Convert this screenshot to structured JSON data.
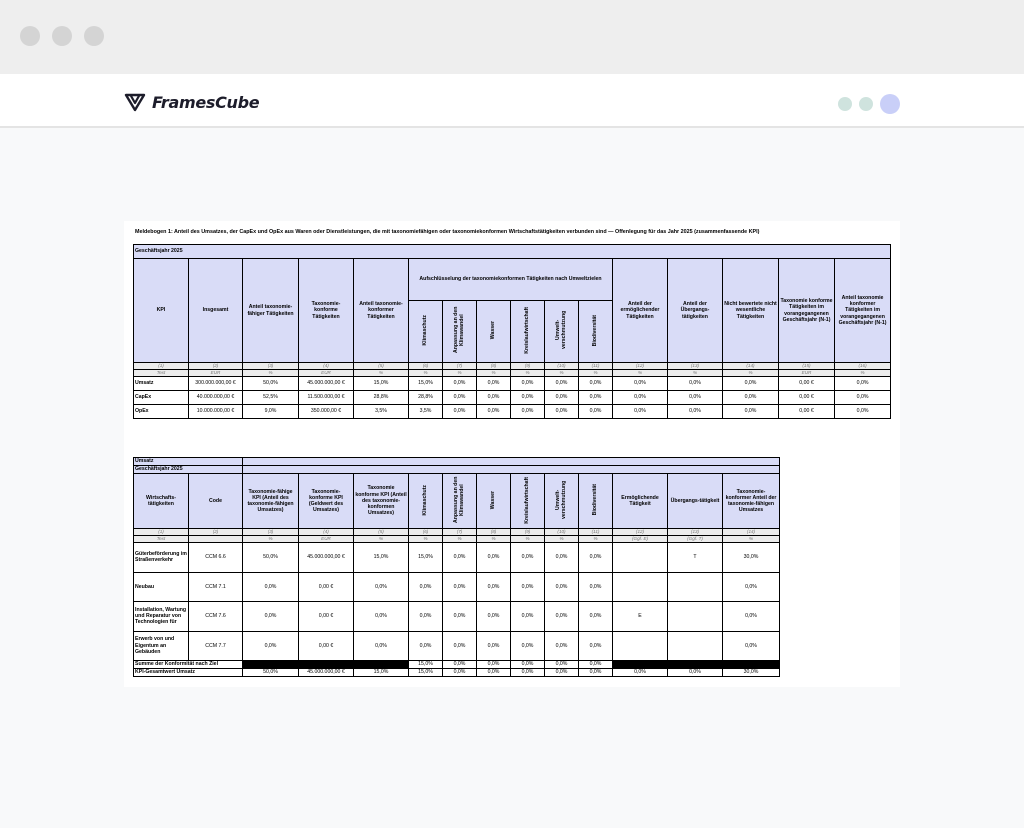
{
  "app": {
    "name": "FramesCube"
  },
  "document": {
    "title": "Meldebogen 1: Anteil des Umsatzes, der CapEx und OpEx aus Waren oder Dienstleistungen, die mit taxonomiefähigen oder taxonomiekonformen Wirtschaftstätigkeiten verbunden sind — Offenlegung für das Jahr 2025 (zusammenfassende KPI)"
  },
  "table1": {
    "fiscal_year": "Geschäftsjahr 2025",
    "headers": {
      "kpi": "KPI",
      "total": "Insgesamt",
      "eligible_share": "Anteil taxonomie-fähiger Tätigkeiten",
      "aligned": "Taxonomie-konforme Tätigkeiten",
      "aligned_share": "Anteil taxonomie-konformer Tätigkeiten",
      "breakdown": "Aufschlüsselung der taxonomiekonformen Tätigkeiten nach Umweltzielen",
      "enabling": "Anteil der ermöglichender Tätigkeiten",
      "transitional": "Anteil der Übergangs-tätigkeiten",
      "not_assessed": "Nicht bewertete nicht wesentliche Tätigkeiten",
      "prev_aligned": "Taxonomie konforme Tätigkeiten im vorangegangenen Geschäftsjahr (N-1)",
      "prev_share": "Anteil taxonomie konformer Tätigkeiten im vorangegangenen Geschäftsjahr (N-1)"
    },
    "objectives": [
      "Klimaschutz",
      "Anpassung an den Klimawandel",
      "Wasser",
      "Kreislaufwirtschaft",
      "Umwelt-verschmutzung",
      "Biodiversität"
    ],
    "col_numbers": [
      "(1)",
      "(2)",
      "(3)",
      "(4)",
      "(5)",
      "(6)",
      "(7)",
      "(8)",
      "(9)",
      "(10)",
      "(11)",
      "(12)",
      "(13)",
      "(14)",
      "(15)",
      "(16)"
    ],
    "col_units": [
      "Text",
      "EUR",
      "%",
      "EUR",
      "%",
      "%",
      "%",
      "%",
      "%",
      "%",
      "%",
      "%",
      "%",
      "%",
      "EUR",
      "%"
    ],
    "rows": [
      [
        "Umsatz",
        "300.000.000,00 €",
        "50,0%",
        "45.000.000,00 €",
        "15,0%",
        "15,0%",
        "0,0%",
        "0,0%",
        "0,0%",
        "0,0%",
        "0,0%",
        "0,0%",
        "0,0%",
        "0,0%",
        "0,00 €",
        "0,0%"
      ],
      [
        "CapEx",
        "40.000.000,00 €",
        "52,5%",
        "11.500.000,00 €",
        "28,8%",
        "28,8%",
        "0,0%",
        "0,0%",
        "0,0%",
        "0,0%",
        "0,0%",
        "0,0%",
        "0,0%",
        "0,0%",
        "0,00 €",
        "0,0%"
      ],
      [
        "OpEx",
        "10.000.000,00 €",
        "9,0%",
        "350.000,00 €",
        "3,5%",
        "3,5%",
        "0,0%",
        "0,0%",
        "0,0%",
        "0,0%",
        "0,0%",
        "0,0%",
        "0,0%",
        "0,0%",
        "0,00 €",
        "0,0%"
      ]
    ]
  },
  "table2": {
    "section": "Umsatz",
    "fiscal_year": "Geschäftsjahr 2025",
    "headers": {
      "activities": "Wirtschafts-tätigkeiten",
      "code": "Code",
      "eligible_kpi": "Taxonomie-fähige KPI (Anteil des taxonomie-fähigen Umsatzes)",
      "aligned_kpi_money": "Taxonomie-konforme KPI (Geldwert des Umsatzes)",
      "aligned_kpi_share": "Taxonomie konforme KPI (Anteil des taxonomie-konformen Umsatzes)",
      "enabling": "Ermöglichende Tätigkeit",
      "transitional": "Übergangs-tätigkeit",
      "aligned_share_eligible": "Taxonomie-konformer Anteil der taxonomie-fähigen Umsatzes"
    },
    "objectives": [
      "Klimaschutz",
      "Anpassung an den Klimawandel",
      "Wasser",
      "Kreislaufwirtschaft",
      "Umwelt-verschmutzung",
      "Biodiversität"
    ],
    "col_numbers": [
      "(1)",
      "(2)",
      "(3)",
      "(4)",
      "(5)",
      "(6)",
      "(7)",
      "(8)",
      "(9)",
      "(10)",
      "(11)",
      "(12)",
      "(13)",
      "(14)"
    ],
    "col_units": [
      "Text",
      "",
      "%",
      "EUR",
      "%",
      "%",
      "%",
      "%",
      "%",
      "%",
      "%",
      "(Ggf. E)",
      "(Ggf. T)",
      "%"
    ],
    "rows": [
      [
        "Güterbeförderung im Straßenverkehr",
        "CCM 6.6",
        "50,0%",
        "45.000.000,00 €",
        "15,0%",
        "15,0%",
        "0,0%",
        "0,0%",
        "0,0%",
        "0,0%",
        "0,0%",
        "",
        "T",
        "30,0%"
      ],
      [
        "Neubau",
        "CCM 7.1",
        "0,0%",
        "0,00 €",
        "0,0%",
        "0,0%",
        "0,0%",
        "0,0%",
        "0,0%",
        "0,0%",
        "0,0%",
        "",
        "",
        "0,0%"
      ],
      [
        "Installation, Wartung und Reparatur von Technologien für",
        "CCM 7.6",
        "0,0%",
        "0,00 €",
        "0,0%",
        "0,0%",
        "0,0%",
        "0,0%",
        "0,0%",
        "0,0%",
        "0,0%",
        "E",
        "",
        "0,0%"
      ],
      [
        "Erwerb von und Eigentum an Gebäuden",
        "CCM 7.7",
        "0,0%",
        "0,00 €",
        "0,0%",
        "0,0%",
        "0,0%",
        "0,0%",
        "0,0%",
        "0,0%",
        "0,0%",
        "",
        "",
        "0,0%"
      ]
    ],
    "sum_row": {
      "label": "Summe der Konformität nach Ziel",
      "values": [
        "15,0%",
        "0,0%",
        "0,0%",
        "0,0%",
        "0,0%",
        "0,0%"
      ]
    },
    "total_row": [
      "KPI-Gesamtwert Umsatz",
      "50,0%",
      "45.000.000,00 €",
      "15,0%",
      "15,0%",
      "0,0%",
      "0,0%",
      "0,0%",
      "0,0%",
      "0,0%",
      "0,0%",
      "0,0%",
      "30,0%"
    ]
  }
}
